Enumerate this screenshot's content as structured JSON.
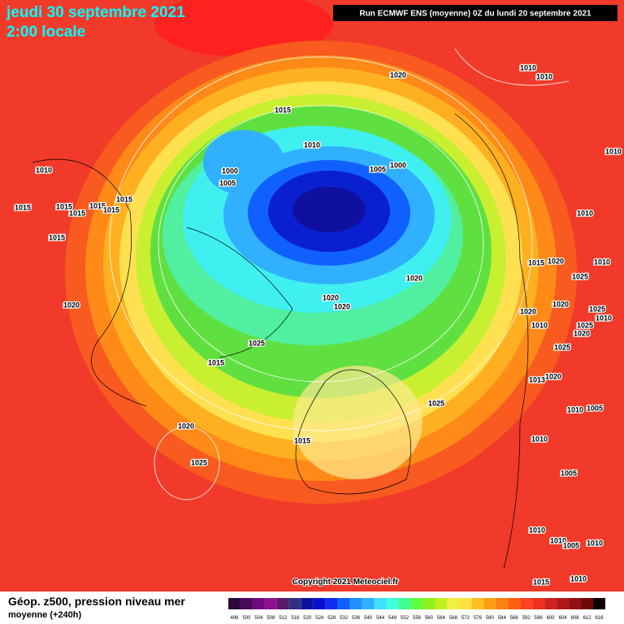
{
  "header": {
    "date": "jeudi 30 septembre 2021",
    "time": "2:00 locale",
    "run": "Run ECMWF ENS (moyenne) 0Z du lundi 20 septembre 2021"
  },
  "map": {
    "isobar_labels": [
      "1010",
      "1010",
      "1020",
      "1015",
      "1010",
      "1000",
      "1005",
      "1005",
      "1000",
      "1010",
      "1010",
      "1015",
      "1015",
      "1015",
      "1015",
      "1015",
      "1015",
      "1015",
      "1010",
      "1015",
      "1020",
      "1010",
      "1025",
      "1020",
      "1020",
      "1020",
      "1020",
      "1020",
      "1020",
      "1025",
      "1010",
      "1025",
      "1010",
      "1020",
      "1025",
      "1015",
      "1025",
      "1013",
      "1020",
      "1025",
      "1010",
      "1005",
      "1020",
      "1015",
      "1010",
      "1025",
      "1005",
      "1010",
      "1010",
      "1005",
      "1010",
      "1015",
      "1010"
    ],
    "copyright": "Copyright 2021 Meteociel.fr"
  },
  "footer": {
    "title": "Géop. z500, pression niveau mer",
    "subtitle": "moyenne  (+240h)"
  },
  "colorbar": {
    "labels": [
      "496",
      "500",
      "504",
      "508",
      "512",
      "516",
      "520",
      "524",
      "528",
      "532",
      "536",
      "540",
      "544",
      "548",
      "552",
      "556",
      "560",
      "564",
      "568",
      "572",
      "576",
      "580",
      "584",
      "588",
      "592",
      "596",
      "600",
      "604",
      "608",
      "612",
      "616"
    ],
    "colors": [
      "#2a0a3a",
      "#4b0a5a",
      "#700a80",
      "#901090",
      "#5a1a6a",
      "#303080",
      "#1010a0",
      "#0a10d0",
      "#1030f0",
      "#1060ff",
      "#2090ff",
      "#30b0ff",
      "#40e0ff",
      "#40ffe0",
      "#40ff90",
      "#60ff40",
      "#90f020",
      "#c0f020",
      "#f0f040",
      "#ffe040",
      "#ffc020",
      "#ffa010",
      "#ff8010",
      "#ff6010",
      "#ff4020",
      "#f03020",
      "#d02020",
      "#b01818",
      "#901010",
      "#700808",
      "#100000"
    ]
  }
}
